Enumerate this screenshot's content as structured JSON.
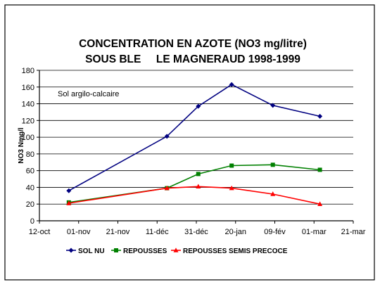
{
  "chart_data": {
    "type": "line",
    "title": [
      "CONCENTRATION EN AZOTE (NO3 mg/litre)",
      "SOUS BLE     LE MAGNERAUD 1998-1999"
    ],
    "xlabel": "",
    "ylabel": "NO3 Nmg/l",
    "annotation": "Sol argilo-calcaire",
    "x_ticks": [
      "12-oct",
      "01-nov",
      "21-nov",
      "11-déc",
      "31-déc",
      "20-jan",
      "09-fév",
      "01-mar",
      "21-mar"
    ],
    "x_tick_dates": [
      "1998-10-12",
      "1998-11-01",
      "1998-11-21",
      "1998-12-11",
      "1998-12-31",
      "1999-01-20",
      "1999-02-09",
      "1999-03-01",
      "1999-03-21"
    ],
    "xlim": [
      "1998-10-12",
      "1999-03-21"
    ],
    "ylim": [
      0,
      180
    ],
    "y_ticks": [
      0,
      20,
      40,
      60,
      80,
      100,
      120,
      140,
      160,
      180
    ],
    "grid": "horizontal",
    "legend_position": "bottom",
    "series": [
      {
        "name": "SOL NU",
        "color": "#000080",
        "marker": "diamond",
        "x": [
          "1998-10-27",
          "1998-12-16",
          "1999-01-01",
          "1999-01-18",
          "1999-02-08",
          "1999-03-04"
        ],
        "y": [
          36,
          101,
          137,
          163,
          138,
          125
        ]
      },
      {
        "name": "REPOUSSES",
        "color": "#008000",
        "marker": "square",
        "x": [
          "1998-10-27",
          "1998-12-16",
          "1999-01-01",
          "1999-01-18",
          "1999-02-08",
          "1999-03-04"
        ],
        "y": [
          22,
          39,
          56,
          66,
          67,
          61
        ]
      },
      {
        "name": "REPOUSSES SEMIS PRECOCE",
        "color": "#ff0000",
        "marker": "triangle",
        "x": [
          "1998-10-27",
          "1998-12-16",
          "1999-01-01",
          "1999-01-18",
          "1999-02-08",
          "1999-03-04"
        ],
        "y": [
          21,
          39,
          41,
          39,
          32,
          20
        ]
      }
    ]
  }
}
